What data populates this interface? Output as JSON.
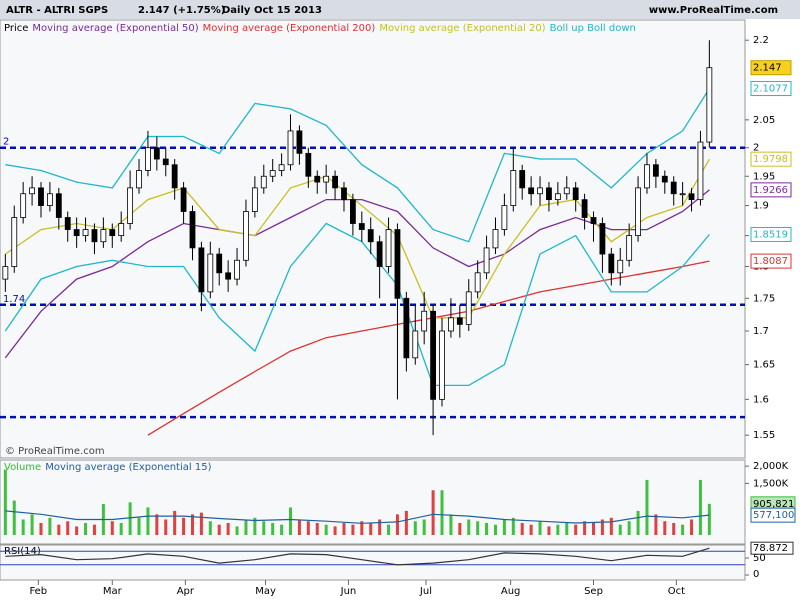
{
  "header": {
    "symbol": "ALTR - ALTRI SGPS",
    "quote": "2.147 (+1.75%)",
    "period": "Daily",
    "date": "Oct 15 2013",
    "site": "www.ProRealTime.com",
    "watermark": "© ProRealTime.com"
  },
  "chart_data": {
    "type": "candlestick",
    "log_scale": true,
    "grid": false,
    "legend": [
      {
        "text": "Price",
        "color": "#000000"
      },
      {
        "text": "Moving average (Exponential 50)",
        "color": "#7a2a9a"
      },
      {
        "text": "Moving average (Exponential 200)",
        "color": "#e03030"
      },
      {
        "text": "Moving average (Exponential 20)",
        "color": "#c8c020"
      },
      {
        "text": "Boll up Boll down",
        "color": "#20b8c8"
      }
    ],
    "xlim": [
      -0.6,
      83
    ],
    "xticks": [
      {
        "value": 3.7,
        "label": "Feb"
      },
      {
        "value": 12,
        "label": "Mar"
      },
      {
        "value": 20.2,
        "label": "Apr"
      },
      {
        "value": 29.2,
        "label": "May"
      },
      {
        "value": 38.5,
        "label": "Jun"
      },
      {
        "value": 47.2,
        "label": "Jul"
      },
      {
        "value": 56.7,
        "label": "Aug"
      },
      {
        "value": 66,
        "label": "Sep"
      },
      {
        "value": 75.3,
        "label": "Oct"
      }
    ],
    "ylim": [
      1.523,
      2.22
    ],
    "yticks": [
      2.2,
      2.05,
      2,
      1.95,
      1.9,
      1.85,
      1.8,
      1.75,
      1.7,
      1.65,
      1.6,
      1.55
    ],
    "levels": [
      {
        "value": 2,
        "label": "2"
      },
      {
        "value": 1.74,
        "label": "1.74"
      },
      {
        "value": 1.575
      }
    ],
    "open": [
      1.78,
      1.8,
      1.88,
      1.92,
      1.93,
      1.9,
      1.92,
      1.88,
      1.86,
      1.85,
      1.86,
      1.84,
      1.86,
      1.85,
      1.87,
      1.93,
      1.96,
      2.0,
      1.98,
      1.97,
      1.93,
      1.89,
      1.83,
      1.76,
      1.82,
      1.79,
      1.78,
      1.81,
      1.89,
      1.93,
      1.95,
      1.96,
      1.97,
      2.03,
      1.99,
      1.95,
      1.94,
      1.95,
      1.93,
      1.91,
      1.87,
      1.86,
      1.84,
      1.8,
      1.86,
      1.75,
      1.66,
      1.7,
      1.73,
      1.6,
      1.7,
      1.72,
      1.71,
      1.76,
      1.79,
      1.83,
      1.86,
      1.9,
      1.96,
      1.93,
      1.92,
      1.93,
      1.91,
      1.92,
      1.93,
      1.91,
      1.88,
      1.87,
      1.82,
      1.79,
      1.81,
      1.85,
      1.93,
      1.97,
      1.95,
      1.94,
      1.92,
      1.92,
      1.91,
      2.01
    ],
    "high": [
      1.82,
      1.9,
      1.94,
      1.95,
      1.94,
      1.94,
      1.93,
      1.89,
      1.88,
      1.88,
      1.87,
      1.88,
      1.87,
      1.89,
      1.96,
      1.98,
      2.03,
      2.02,
      2.0,
      1.98,
      1.94,
      1.9,
      1.84,
      1.84,
      1.83,
      1.81,
      1.83,
      1.91,
      1.95,
      1.97,
      1.98,
      1.99,
      2.06,
      2.04,
      2.0,
      1.96,
      1.97,
      1.96,
      1.94,
      1.92,
      1.89,
      1.88,
      1.85,
      1.88,
      1.87,
      1.76,
      1.74,
      1.76,
      1.74,
      1.72,
      1.75,
      1.74,
      1.78,
      1.81,
      1.85,
      1.88,
      1.92,
      2.0,
      1.97,
      1.95,
      1.95,
      1.94,
      1.94,
      1.95,
      1.94,
      1.92,
      1.89,
      1.88,
      1.83,
      1.83,
      1.87,
      1.95,
      1.99,
      1.98,
      1.96,
      1.95,
      1.94,
      1.93,
      2.03,
      2.2
    ],
    "low": [
      1.76,
      1.79,
      1.87,
      1.9,
      1.88,
      1.89,
      1.86,
      1.84,
      1.83,
      1.84,
      1.82,
      1.83,
      1.83,
      1.84,
      1.86,
      1.92,
      1.95,
      1.96,
      1.95,
      1.91,
      1.87,
      1.81,
      1.73,
      1.75,
      1.77,
      1.76,
      1.77,
      1.8,
      1.88,
      1.92,
      1.94,
      1.95,
      1.96,
      1.97,
      1.93,
      1.92,
      1.92,
      1.91,
      1.89,
      1.85,
      1.84,
      1.82,
      1.75,
      1.79,
      1.6,
      1.64,
      1.65,
      1.68,
      1.55,
      1.59,
      1.69,
      1.69,
      1.7,
      1.75,
      1.78,
      1.82,
      1.85,
      1.89,
      1.91,
      1.9,
      1.9,
      1.89,
      1.9,
      1.91,
      1.89,
      1.86,
      1.84,
      1.79,
      1.77,
      1.77,
      1.8,
      1.84,
      1.92,
      1.93,
      1.92,
      1.9,
      1.9,
      1.89,
      1.9,
      2.0
    ],
    "close": [
      1.8,
      1.88,
      1.92,
      1.93,
      1.9,
      1.92,
      1.88,
      1.86,
      1.85,
      1.86,
      1.84,
      1.86,
      1.85,
      1.87,
      1.93,
      1.96,
      2.0,
      1.98,
      1.97,
      1.93,
      1.89,
      1.83,
      1.76,
      1.82,
      1.79,
      1.78,
      1.81,
      1.89,
      1.93,
      1.95,
      1.96,
      1.97,
      2.03,
      1.99,
      1.95,
      1.94,
      1.95,
      1.93,
      1.91,
      1.87,
      1.86,
      1.84,
      1.8,
      1.86,
      1.75,
      1.66,
      1.7,
      1.73,
      1.6,
      1.7,
      1.72,
      1.71,
      1.76,
      1.79,
      1.83,
      1.86,
      1.9,
      1.96,
      1.93,
      1.92,
      1.93,
      1.91,
      1.92,
      1.93,
      1.91,
      1.88,
      1.87,
      1.82,
      1.79,
      1.81,
      1.85,
      1.93,
      1.97,
      1.95,
      1.94,
      1.92,
      1.92,
      1.91,
      2.01,
      2.147
    ],
    "indicator_x": [
      0,
      4,
      8,
      12,
      16,
      20,
      24,
      28,
      32,
      36,
      40,
      44,
      48,
      52,
      56,
      60,
      64,
      68,
      72,
      76,
      79
    ],
    "series": [
      {
        "name": "Moving average (Exponential 50)",
        "color": "#7a2a9a",
        "values": [
          1.66,
          1.73,
          1.78,
          1.8,
          1.84,
          1.87,
          1.86,
          1.85,
          1.88,
          1.91,
          1.91,
          1.89,
          1.83,
          1.8,
          1.82,
          1.86,
          1.88,
          1.86,
          1.86,
          1.89,
          1.9266
        ]
      },
      {
        "name": "Moving average (Exponential 200)",
        "color": "#e03030",
        "values": [
          null,
          null,
          null,
          null,
          1.55,
          1.58,
          1.61,
          1.64,
          1.67,
          1.69,
          1.7,
          1.71,
          1.72,
          1.73,
          1.745,
          1.76,
          1.77,
          1.78,
          1.79,
          1.8,
          1.8087
        ]
      },
      {
        "name": "Moving average (Exponential 20)",
        "color": "#c8c020",
        "values": [
          1.82,
          1.86,
          1.87,
          1.86,
          1.91,
          1.93,
          1.86,
          1.85,
          1.93,
          1.95,
          1.9,
          1.85,
          1.72,
          1.72,
          1.82,
          1.9,
          1.91,
          1.84,
          1.88,
          1.9,
          1.9798
        ]
      },
      {
        "name": "Boll up",
        "color": "#20b8c8",
        "values": [
          1.97,
          1.96,
          1.94,
          1.93,
          2.02,
          2.02,
          1.99,
          2.08,
          2.07,
          2.04,
          1.97,
          1.93,
          1.86,
          1.84,
          1.99,
          1.98,
          1.98,
          1.93,
          1.99,
          2.03,
          2.1077
        ]
      },
      {
        "name": "Boll down",
        "color": "#20b8c8",
        "values": [
          1.7,
          1.78,
          1.8,
          1.81,
          1.8,
          1.8,
          1.72,
          1.67,
          1.8,
          1.87,
          1.84,
          1.77,
          1.62,
          1.62,
          1.65,
          1.82,
          1.85,
          1.76,
          1.76,
          1.8,
          1.8519
        ]
      }
    ],
    "volume": {
      "legend": [
        {
          "text": "Volume",
          "color": "#30c030"
        },
        {
          "text": "Moving average (Exponential 15)",
          "color": "#2060a0"
        }
      ],
      "ylim": [
        0,
        2150000
      ],
      "yticks": [
        {
          "value": 2000000,
          "label": "2,000K"
        },
        {
          "value": 1500000,
          "label": "1,500K"
        }
      ],
      "values": [
        1900000,
        1000000,
        450000,
        600000,
        350000,
        500000,
        300000,
        400000,
        250000,
        350000,
        300000,
        900000,
        400000,
        350000,
        950000,
        500000,
        800000,
        600000,
        450000,
        700000,
        500000,
        600000,
        650000,
        400000,
        300000,
        350000,
        250000,
        450000,
        500000,
        400000,
        350000,
        300000,
        800000,
        450000,
        400000,
        350000,
        300000,
        250000,
        350000,
        300000,
        400000,
        350000,
        450000,
        300000,
        600000,
        700000,
        400000,
        450000,
        1300000,
        1300000,
        600000,
        350000,
        450000,
        400000,
        350000,
        300000,
        450000,
        500000,
        350000,
        300000,
        400000,
        250000,
        300000,
        350000,
        300000,
        400000,
        350000,
        450000,
        500000,
        300000,
        400000,
        700000,
        1600000,
        600000,
        400000,
        350000,
        300000,
        450000,
        1600000,
        905821
      ],
      "value_labels": {
        "79": "905,821"
      },
      "ema": {
        "color": "#2060a0",
        "values": [
          700000,
          600000,
          450000,
          450000,
          550000,
          550000,
          480000,
          420000,
          450000,
          400000,
          340000,
          380000,
          600000,
          550000,
          450000,
          400000,
          350000,
          380000,
          550000,
          500000,
          577100
        ],
        "last_label": "577,100"
      }
    },
    "rsi": {
      "title": "RSI(14)",
      "ylim": [
        0,
        100
      ],
      "yticks": [
        50,
        0
      ],
      "levels": [
        70,
        30
      ],
      "values": [
        55,
        60,
        45,
        48,
        62,
        55,
        35,
        45,
        62,
        60,
        45,
        30,
        35,
        45,
        65,
        62,
        55,
        42,
        58,
        55,
        78.872
      ]
    }
  }
}
